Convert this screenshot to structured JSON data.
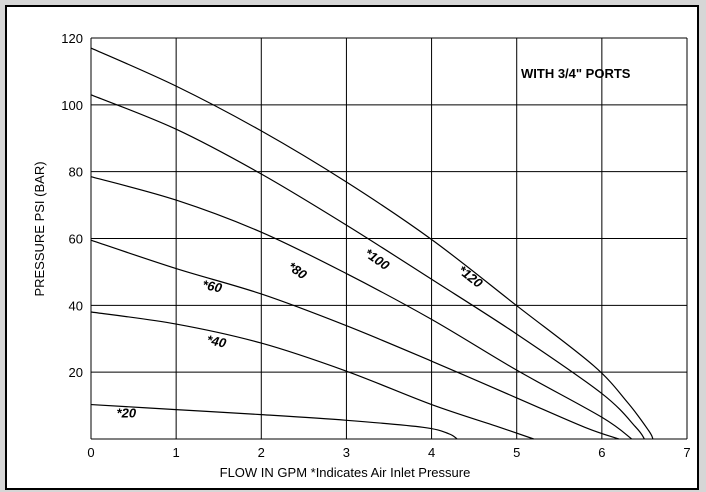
{
  "chart_data": {
    "type": "line",
    "annotation": "WITH 3/4\" PORTS",
    "xlabel": "FLOW IN GPM   *Indicates Air Inlet Pressure",
    "ylabel": "PRESSURE PSI (BAR)",
    "xlim": [
      0,
      7
    ],
    "ylim": [
      0,
      120
    ],
    "x_ticks": [
      "0",
      "1",
      "2",
      "3",
      "4",
      "5",
      "6",
      "7"
    ],
    "y_ticks": [
      "20",
      "40",
      "60",
      "80",
      "100",
      "120"
    ],
    "grid": true,
    "series": [
      {
        "name": "*20",
        "label": "*20",
        "points": [
          [
            0,
            10.3
          ],
          [
            1,
            8.8
          ],
          [
            2,
            7.3
          ],
          [
            3,
            5.6
          ],
          [
            3.9,
            3.5
          ],
          [
            4.2,
            1.6
          ],
          [
            4.3,
            0
          ]
        ]
      },
      {
        "name": "*40",
        "label": "*40",
        "points": [
          [
            0,
            38
          ],
          [
            1,
            34.4
          ],
          [
            2,
            28.7
          ],
          [
            3,
            20.3
          ],
          [
            4,
            10.3
          ],
          [
            4.8,
            3.5
          ],
          [
            5.2,
            0
          ]
        ]
      },
      {
        "name": "*60",
        "label": "*60",
        "points": [
          [
            0,
            59.5
          ],
          [
            1,
            51
          ],
          [
            2,
            43.4
          ],
          [
            3,
            33.9
          ],
          [
            4,
            23.3
          ],
          [
            5,
            12.3
          ],
          [
            5.8,
            3.5
          ],
          [
            6.2,
            0
          ]
        ]
      },
      {
        "name": "*80",
        "label": "*80",
        "points": [
          [
            0,
            78.5
          ],
          [
            1,
            71.5
          ],
          [
            2,
            61.9
          ],
          [
            3,
            49.5
          ],
          [
            4,
            35.8
          ],
          [
            5,
            20.6
          ],
          [
            6,
            6.5
          ],
          [
            6.35,
            0
          ]
        ]
      },
      {
        "name": "*100",
        "label": "*100",
        "points": [
          [
            0,
            103
          ],
          [
            1,
            92.7
          ],
          [
            2,
            79.3
          ],
          [
            3,
            64
          ],
          [
            4,
            47.8
          ],
          [
            5,
            31.4
          ],
          [
            6,
            13.6
          ],
          [
            6.4,
            3.5
          ],
          [
            6.5,
            0
          ]
        ]
      },
      {
        "name": "*120",
        "label": "*120",
        "points": [
          [
            0,
            117
          ],
          [
            1,
            105.6
          ],
          [
            2,
            92.2
          ],
          [
            3,
            76.9
          ],
          [
            4,
            59.7
          ],
          [
            5,
            39.9
          ],
          [
            5.9,
            22
          ],
          [
            6.3,
            11
          ],
          [
            6.55,
            2.5
          ],
          [
            6.6,
            0
          ]
        ]
      }
    ],
    "label_positions": [
      {
        "label": "*20",
        "x": 0.3,
        "y": 6.5,
        "rotate": 0
      },
      {
        "label": "*40",
        "x": 1.35,
        "y": 28.5,
        "rotate": 12
      },
      {
        "label": "*60",
        "x": 1.3,
        "y": 45,
        "rotate": 12
      },
      {
        "label": "*80",
        "x": 2.3,
        "y": 51,
        "rotate": 35
      },
      {
        "label": "*100",
        "x": 3.2,
        "y": 55,
        "rotate": 35
      },
      {
        "label": "*120",
        "x": 4.3,
        "y": 50,
        "rotate": 38
      }
    ]
  }
}
